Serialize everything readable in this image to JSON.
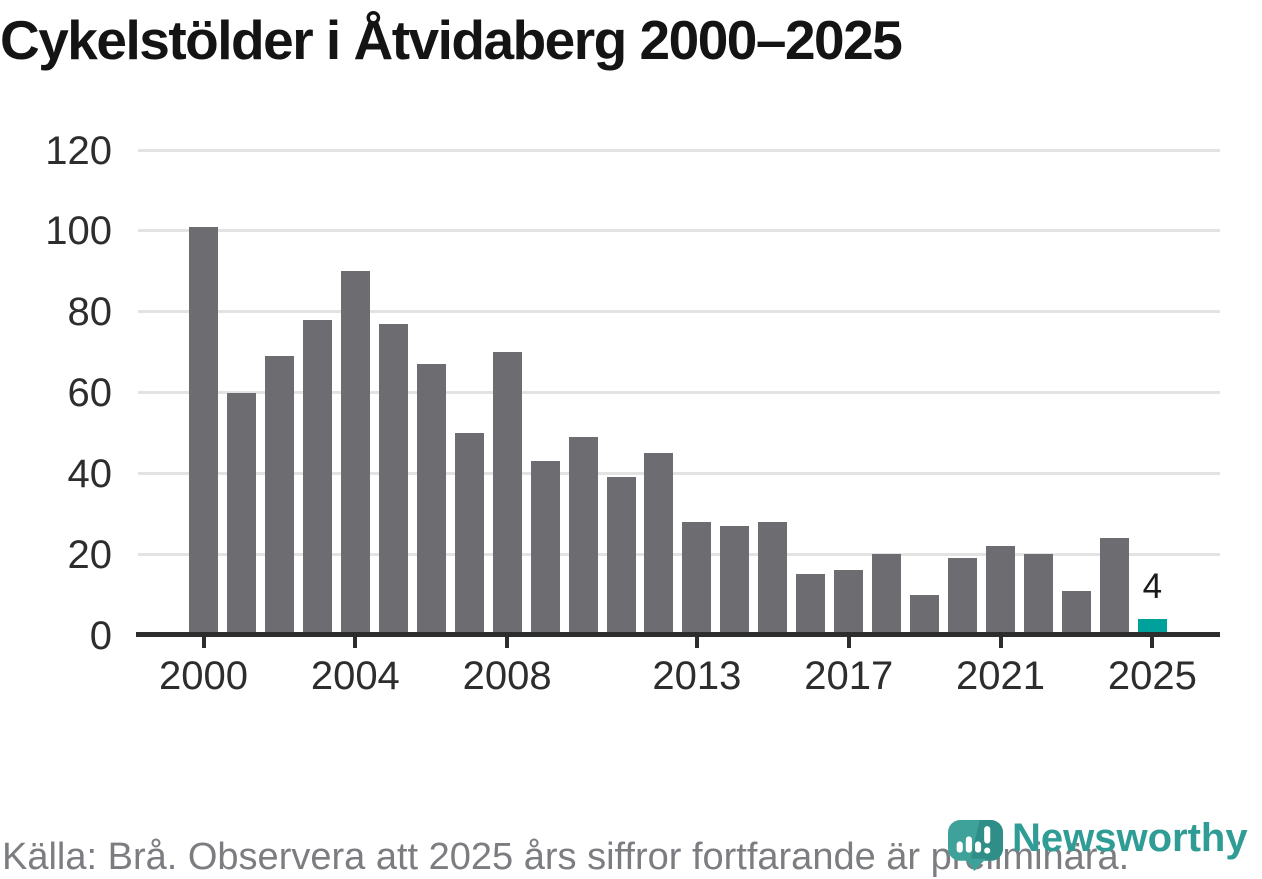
{
  "title": "Cykelstölder i Åtvidaberg 2000–2025",
  "chart_data": {
    "type": "bar",
    "title": "Cykelstölder i Åtvidaberg 2000–2025",
    "categories": [
      "2000",
      "2001",
      "2002",
      "2003",
      "2004",
      "2005",
      "2006",
      "2007",
      "2008",
      "2009",
      "2010",
      "2011",
      "2012",
      "2013",
      "2014",
      "2015",
      "2016",
      "2017",
      "2018",
      "2019",
      "2020",
      "2021",
      "2022",
      "2023",
      "2024",
      "2025"
    ],
    "values": [
      101,
      60,
      69,
      78,
      90,
      77,
      67,
      50,
      70,
      43,
      49,
      39,
      45,
      28,
      27,
      28,
      15,
      16,
      20,
      10,
      19,
      22,
      20,
      11,
      24,
      4
    ],
    "xlabel": "",
    "ylabel": "",
    "ylim": [
      0,
      120
    ],
    "yticks": [
      0,
      20,
      40,
      60,
      80,
      100,
      120
    ],
    "xtick_labels": [
      "2000",
      "2004",
      "2008",
      "2013",
      "2017",
      "2021",
      "2025"
    ],
    "grid": "horizontal",
    "legend": "none",
    "bar_color": "#6d6d71",
    "highlight": {
      "category": "2025",
      "value": 4,
      "color": "#00a09b",
      "data_label": "4"
    }
  },
  "footer": {
    "note": "Källa: Brå. Observera att 2025 års siffror fortfarande är preliminära."
  },
  "branding": {
    "name": "Newsworthy",
    "text_color": "#2f9c95",
    "icon_color": "#3ea29a",
    "icon_shade_color": "#2f8f88"
  }
}
